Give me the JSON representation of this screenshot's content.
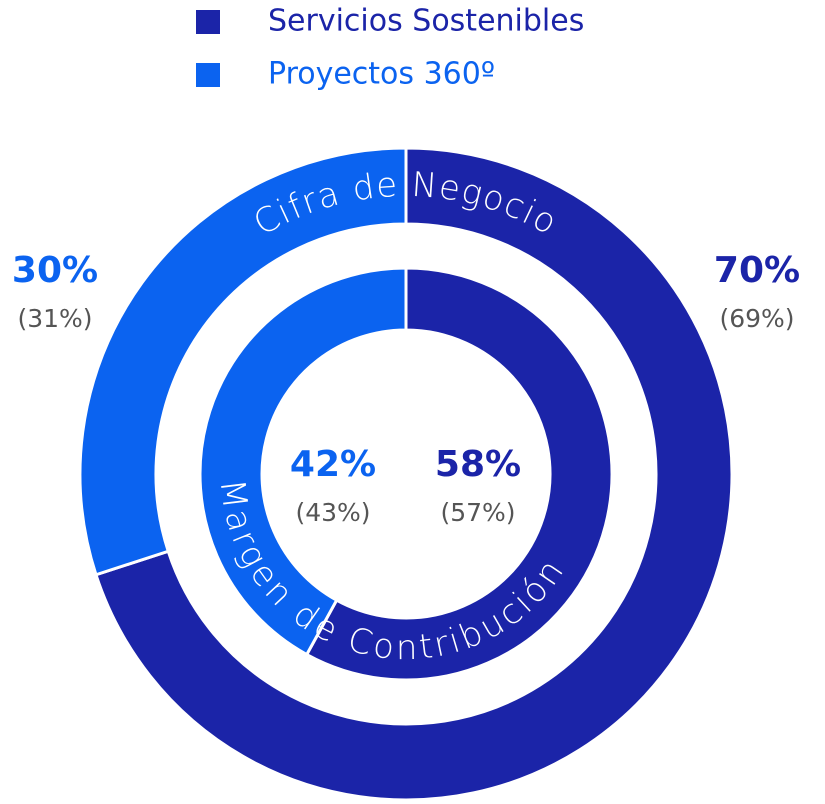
{
  "chart_data": {
    "type": "donut",
    "series": [
      {
        "name": "Servicios Sostenibles",
        "color": "#1b24a8"
      },
      {
        "name": "Proyectos 360º",
        "color": "#0b63f0"
      }
    ],
    "rings": [
      {
        "name": "Cifra de Negocio",
        "values": [
          70,
          30
        ],
        "value_labels": [
          "70%",
          "30%"
        ],
        "previous_values": [
          69,
          31
        ],
        "previous_value_labels": [
          "(69%)",
          "(31%)"
        ]
      },
      {
        "name": "Margen de Contribución",
        "values": [
          58,
          42
        ],
        "value_labels": [
          "58%",
          "42%"
        ],
        "previous_values": [
          57,
          43
        ],
        "previous_value_labels": [
          "(57%)",
          "(43%)"
        ]
      }
    ]
  }
}
